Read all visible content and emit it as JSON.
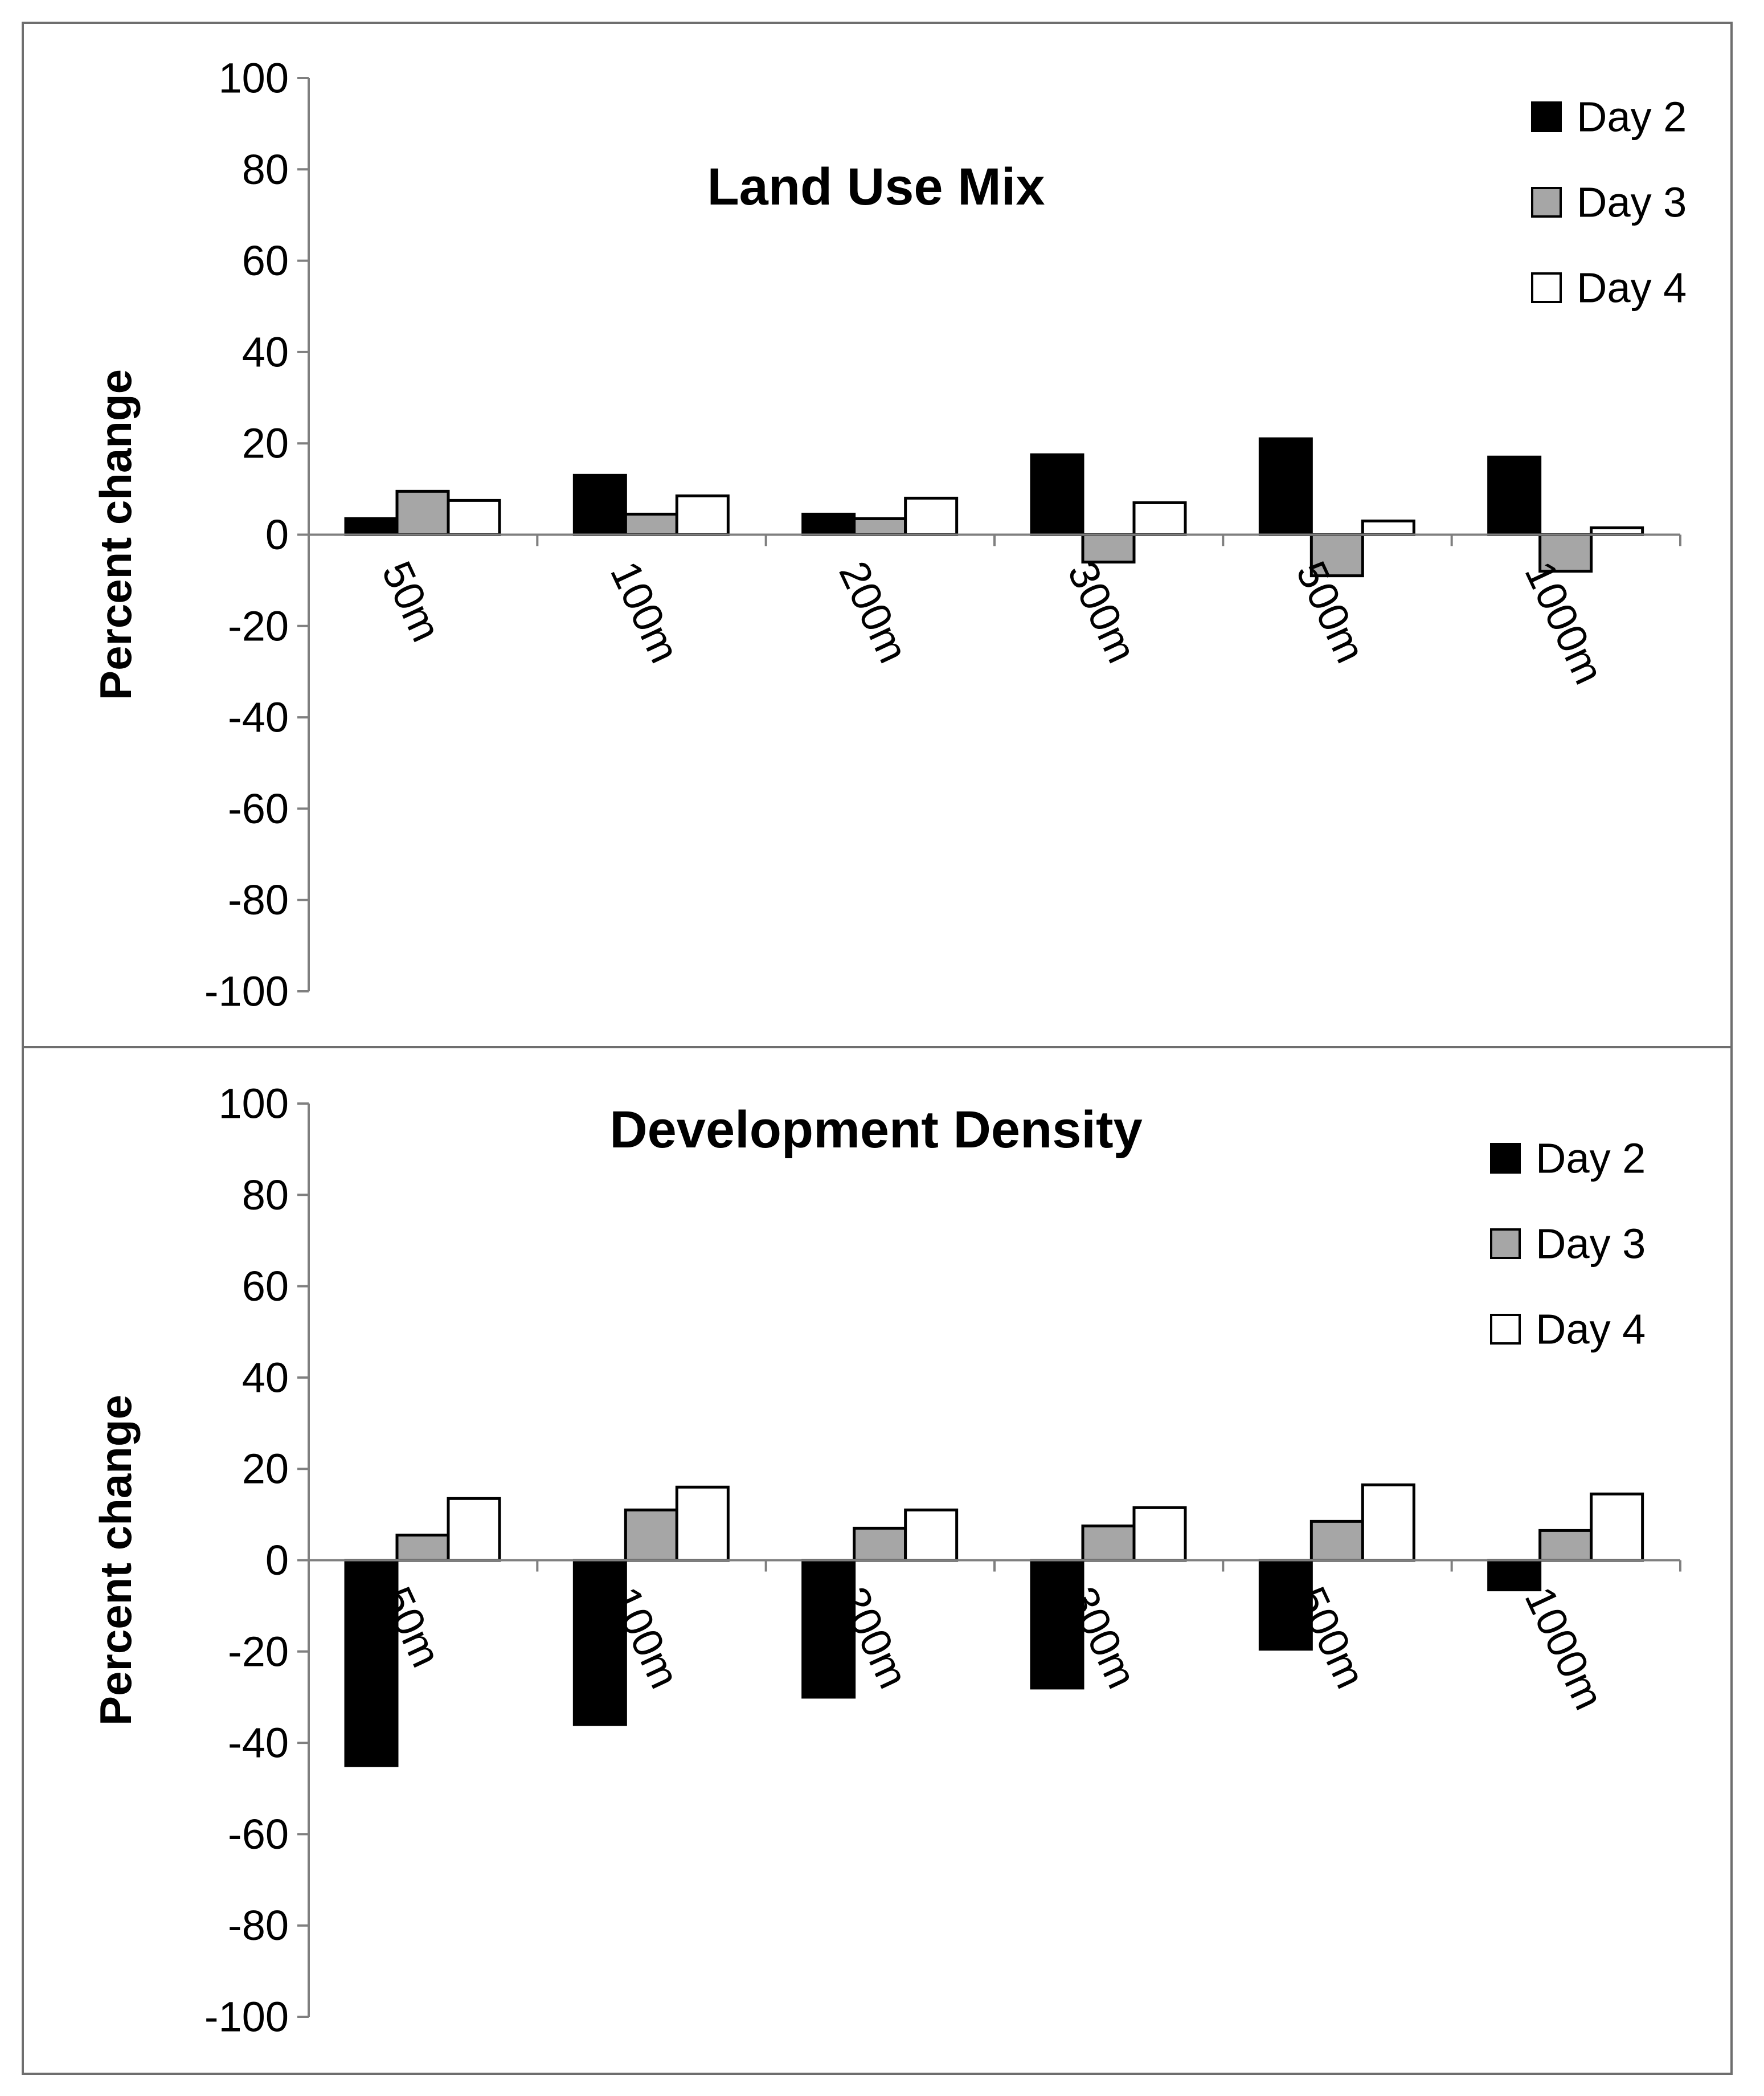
{
  "chart_data": [
    {
      "type": "bar",
      "title": "Land Use Mix",
      "xlabel": "",
      "ylabel": "Percent change",
      "ylim": [
        -100,
        100
      ],
      "yticks": [
        100,
        80,
        60,
        40,
        20,
        0,
        -20,
        -40,
        -60,
        -80,
        -100
      ],
      "categories": [
        "50m",
        "100m",
        "200m",
        "300m",
        "500m",
        "1000m"
      ],
      "series": [
        {
          "name": "Day 2",
          "color": "#000000",
          "values": [
            3.5,
            13,
            4.5,
            17.5,
            21,
            17
          ]
        },
        {
          "name": "Day 3",
          "color": "#a6a6a6",
          "values": [
            9.5,
            4.5,
            3.5,
            -6,
            -9,
            -8
          ]
        },
        {
          "name": "Day 4",
          "color": "#ffffff",
          "values": [
            7.5,
            8.5,
            8,
            7,
            3,
            1.5
          ]
        }
      ],
      "legend": "top-right",
      "grid": false
    },
    {
      "type": "bar",
      "title": "Development Density",
      "xlabel": "",
      "ylabel": "Percent change",
      "ylim": [
        -100,
        100
      ],
      "yticks": [
        100,
        80,
        60,
        40,
        20,
        0,
        -20,
        -40,
        -60,
        -80,
        -100
      ],
      "categories": [
        "50m",
        "100m",
        "200m",
        "300m",
        "500m",
        "1000m"
      ],
      "series": [
        {
          "name": "Day 2",
          "color": "#000000",
          "values": [
            -45,
            -36,
            -30,
            -28,
            -19.5,
            -6.5
          ]
        },
        {
          "name": "Day 3",
          "color": "#a6a6a6",
          "values": [
            5.5,
            11,
            7,
            7.5,
            8.5,
            6.5
          ]
        },
        {
          "name": "Day 4",
          "color": "#ffffff",
          "values": [
            13.5,
            16,
            11,
            11.5,
            16.5,
            14.5
          ]
        }
      ],
      "legend": "top-right",
      "grid": false
    }
  ]
}
